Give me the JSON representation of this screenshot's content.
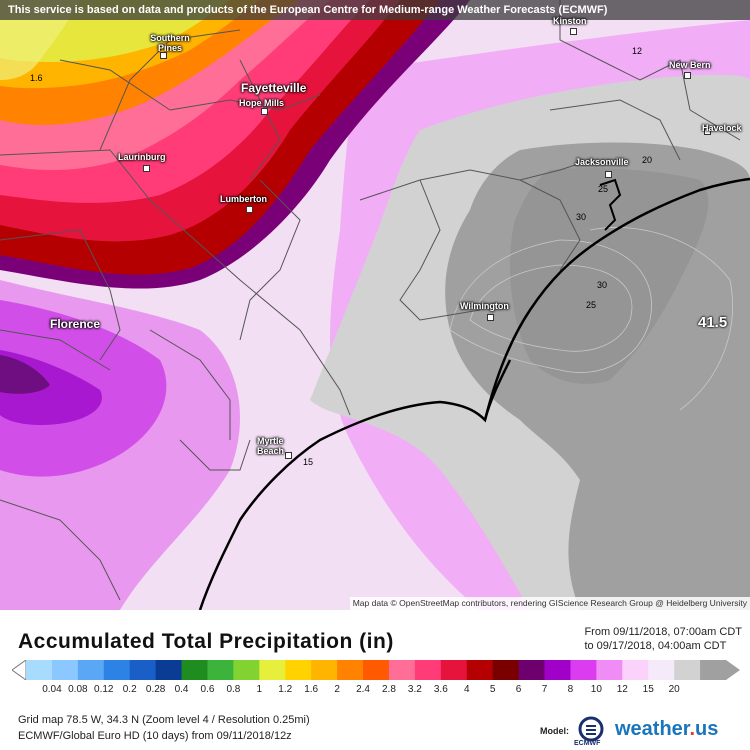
{
  "banner": "This service is based on data and products of the European Centre for Medium-range Weather Forecasts (ECMWF)",
  "attribution": "Map data © OpenStreetMap contributors, rendering GIScience Research Group @ Heidelberg University",
  "cities": [
    {
      "name": "Kinston",
      "cls": "small"
    },
    {
      "name": "Southern Pines",
      "cls": "small"
    },
    {
      "name": "New Bern",
      "cls": "small"
    },
    {
      "name": "Fayetteville",
      "cls": "big"
    },
    {
      "name": "Hope Mills",
      "cls": "small"
    },
    {
      "name": "Havelock",
      "cls": "small"
    },
    {
      "name": "Laurinburg",
      "cls": "small"
    },
    {
      "name": "Jacksonville",
      "cls": "small"
    },
    {
      "name": "Lumberton",
      "cls": "small"
    },
    {
      "name": "Wilmington",
      "cls": "small"
    },
    {
      "name": "Florence",
      "cls": "big"
    },
    {
      "name": "Myrtle Beach",
      "cls": "small"
    }
  ],
  "contour_labels": [
    "1.6",
    "12",
    "20",
    "25",
    "30",
    "30",
    "25",
    "15"
  ],
  "max_value": "41.5",
  "legend": {
    "title": "Accumulated Total Precipitation (in)",
    "from": "From 09/11/2018, 07:00am CDT",
    "to": "to 09/17/2018, 04:00am CDT",
    "ticks": [
      "0.04",
      "0.08",
      "0.12",
      "0.2",
      "0.28",
      "0.4",
      "0.6",
      "0.8",
      "1",
      "1.2",
      "1.6",
      "2",
      "2.4",
      "2.8",
      "3.2",
      "3.6",
      "4",
      "5",
      "6",
      "7",
      "8",
      "10",
      "12",
      "15",
      "20"
    ],
    "colors": [
      "#a8dcff",
      "#8ac8ff",
      "#5aa8f5",
      "#2d82e6",
      "#1a5fc8",
      "#0a3c96",
      "#1e8c1e",
      "#3cb43c",
      "#82d232",
      "#e6f03c",
      "#ffd200",
      "#ffb400",
      "#ff8200",
      "#ff5a00",
      "#ff6e96",
      "#ff3c78",
      "#e6143c",
      "#b40000",
      "#7a0000",
      "#6e006e",
      "#a000c8",
      "#dc3cf0",
      "#f08cf5",
      "#fad2fa",
      "#f5eafa",
      "#d2d2d2",
      "#a0a0a0"
    ]
  },
  "info": {
    "line1": "Grid map 78.5 W, 34.3 N (Zoom level 4 / Resolution 0.25mi)",
    "line2": "ECMWF/Global Euro HD (10 days) from 09/11/2018/12z"
  },
  "model_label": "Model:",
  "ecmwf_label": "ECMWF",
  "brand": {
    "name": "weather",
    "dot": ".",
    "suffix": "us"
  }
}
